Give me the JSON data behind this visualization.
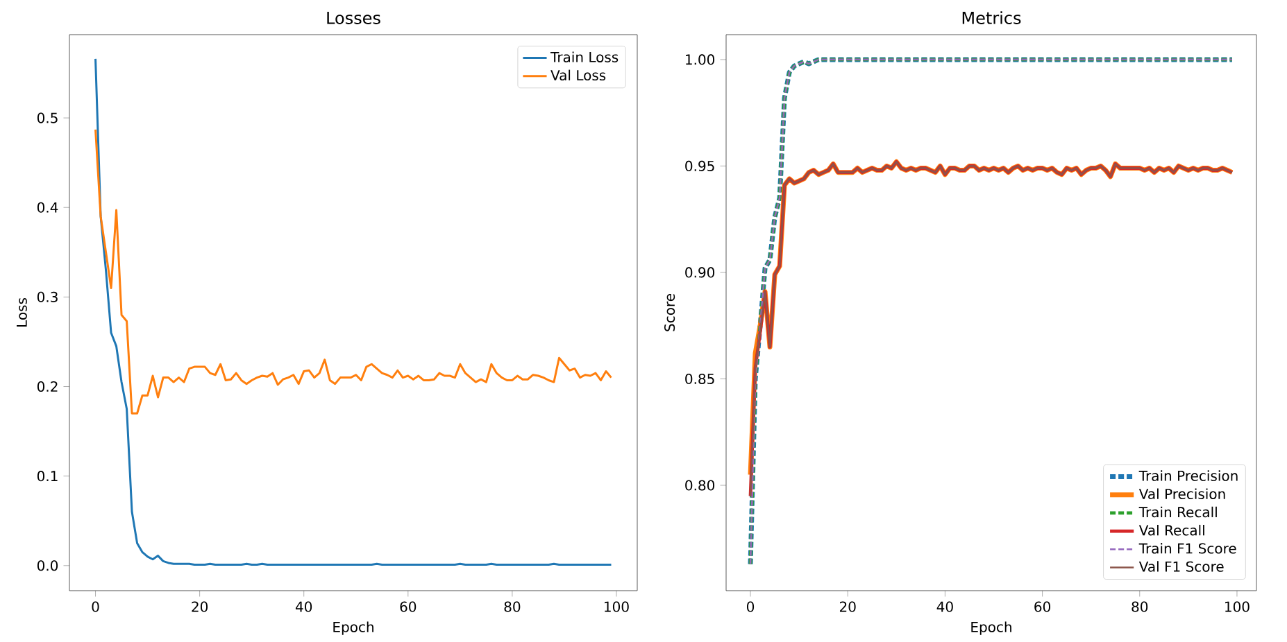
{
  "chart_data": [
    {
      "type": "line",
      "title": "Losses",
      "xlabel": "Epoch",
      "ylabel": "Loss",
      "legend": "top right",
      "xlim": [
        -5,
        104
      ],
      "ylim": [
        -0.028,
        0.593
      ],
      "xticks": [
        0,
        20,
        40,
        60,
        80,
        100
      ],
      "yticks": [
        {
          "value": 0,
          "label": "0.0"
        },
        {
          "value": 0.1,
          "label": "0.1"
        },
        {
          "value": 0.2,
          "label": "0.2"
        },
        {
          "value": 0.3,
          "label": "0.3"
        },
        {
          "value": 0.4,
          "label": "0.4"
        },
        {
          "value": 0.5,
          "label": "0.5"
        }
      ],
      "x": [
        0,
        1,
        2,
        3,
        4,
        5,
        6,
        7,
        8,
        9,
        10,
        11,
        12,
        13,
        14,
        15,
        16,
        17,
        18,
        19,
        20,
        21,
        22,
        23,
        24,
        25,
        26,
        27,
        28,
        29,
        30,
        31,
        32,
        33,
        34,
        35,
        36,
        37,
        38,
        39,
        40,
        41,
        42,
        43,
        44,
        45,
        46,
        47,
        48,
        49,
        50,
        51,
        52,
        53,
        54,
        55,
        56,
        57,
        58,
        59,
        60,
        61,
        62,
        63,
        64,
        65,
        66,
        67,
        68,
        69,
        70,
        71,
        72,
        73,
        74,
        75,
        76,
        77,
        78,
        79,
        80,
        81,
        82,
        83,
        84,
        85,
        86,
        87,
        88,
        89,
        90,
        91,
        92,
        93,
        94,
        95,
        96,
        97,
        98,
        99
      ],
      "series": [
        {
          "name": "Train Loss",
          "color": "#1f77b4",
          "values": [
            0.566,
            0.39,
            0.33,
            0.26,
            0.245,
            0.205,
            0.175,
            0.06,
            0.025,
            0.015,
            0.01,
            0.007,
            0.011,
            0.005,
            0.003,
            0.002,
            0.002,
            0.002,
            0.002,
            0.001,
            0.001,
            0.001,
            0.002,
            0.001,
            0.001,
            0.001,
            0.001,
            0.001,
            0.001,
            0.002,
            0.001,
            0.001,
            0.002,
            0.001,
            0.001,
            0.001,
            0.001,
            0.001,
            0.001,
            0.001,
            0.001,
            0.001,
            0.001,
            0.001,
            0.001,
            0.001,
            0.001,
            0.001,
            0.001,
            0.001,
            0.001,
            0.001,
            0.001,
            0.001,
            0.002,
            0.001,
            0.001,
            0.001,
            0.001,
            0.001,
            0.001,
            0.001,
            0.001,
            0.001,
            0.001,
            0.001,
            0.001,
            0.001,
            0.001,
            0.001,
            0.002,
            0.001,
            0.001,
            0.001,
            0.001,
            0.001,
            0.002,
            0.001,
            0.001,
            0.001,
            0.001,
            0.001,
            0.001,
            0.001,
            0.001,
            0.001,
            0.001,
            0.001,
            0.002,
            0.001,
            0.001,
            0.001,
            0.001,
            0.001,
            0.001,
            0.001,
            0.001,
            0.001,
            0.001,
            0.001
          ]
        },
        {
          "name": "Val Loss",
          "color": "#ff7f0e",
          "values": [
            0.487,
            0.39,
            0.35,
            0.31,
            0.397,
            0.28,
            0.273,
            0.17,
            0.17,
            0.19,
            0.19,
            0.212,
            0.188,
            0.21,
            0.21,
            0.205,
            0.21,
            0.205,
            0.22,
            0.222,
            0.222,
            0.222,
            0.215,
            0.213,
            0.225,
            0.207,
            0.208,
            0.215,
            0.207,
            0.203,
            0.207,
            0.21,
            0.212,
            0.211,
            0.215,
            0.202,
            0.208,
            0.21,
            0.213,
            0.203,
            0.217,
            0.218,
            0.21,
            0.215,
            0.23,
            0.207,
            0.203,
            0.21,
            0.21,
            0.21,
            0.213,
            0.207,
            0.222,
            0.225,
            0.22,
            0.215,
            0.213,
            0.21,
            0.218,
            0.21,
            0.212,
            0.208,
            0.212,
            0.207,
            0.207,
            0.208,
            0.215,
            0.212,
            0.212,
            0.21,
            0.225,
            0.215,
            0.21,
            0.205,
            0.208,
            0.205,
            0.225,
            0.215,
            0.21,
            0.207,
            0.207,
            0.212,
            0.208,
            0.208,
            0.213,
            0.212,
            0.21,
            0.207,
            0.205,
            0.232,
            0.225,
            0.218,
            0.22,
            0.21,
            0.213,
            0.212,
            0.215,
            0.207,
            0.217,
            0.21
          ]
        }
      ]
    },
    {
      "type": "line",
      "title": "Metrics",
      "xlabel": "Epoch",
      "ylabel": "Score",
      "legend": "bottom right",
      "xlim": [
        -5,
        104
      ],
      "ylim": [
        0.7505,
        1.0117
      ],
      "xticks": [
        0,
        20,
        40,
        60,
        80,
        100
      ],
      "yticks": [
        {
          "value": 0.8,
          "label": "0.80"
        },
        {
          "value": 0.85,
          "label": "0.85"
        },
        {
          "value": 0.9,
          "label": "0.90"
        },
        {
          "value": 0.95,
          "label": "0.95"
        },
        {
          "value": 1.0,
          "label": "1.00"
        }
      ],
      "x": [
        0,
        1,
        2,
        3,
        4,
        5,
        6,
        7,
        8,
        9,
        10,
        11,
        12,
        13,
        14,
        15,
        16,
        17,
        18,
        19,
        20,
        21,
        22,
        23,
        24,
        25,
        26,
        27,
        28,
        29,
        30,
        31,
        32,
        33,
        34,
        35,
        36,
        37,
        38,
        39,
        40,
        41,
        42,
        43,
        44,
        45,
        46,
        47,
        48,
        49,
        50,
        51,
        52,
        53,
        54,
        55,
        56,
        57,
        58,
        59,
        60,
        61,
        62,
        63,
        64,
        65,
        66,
        67,
        68,
        69,
        70,
        71,
        72,
        73,
        74,
        75,
        76,
        77,
        78,
        79,
        80,
        81,
        82,
        83,
        84,
        85,
        86,
        87,
        88,
        89,
        90,
        91,
        92,
        93,
        94,
        95,
        96,
        97,
        98,
        99
      ],
      "series": [
        {
          "name": "Train Precision",
          "color": "#1f77b4",
          "line_style": "dashed",
          "values": [
            0.763,
            0.85,
            0.875,
            0.902,
            0.906,
            0.926,
            0.935,
            0.982,
            0.994,
            0.997,
            0.998,
            0.999,
            0.998,
            0.999,
            1.0,
            1.0,
            1.0,
            1.0,
            1.0,
            1.0,
            1.0,
            1.0,
            1.0,
            1.0,
            1.0,
            1.0,
            1.0,
            1.0,
            1.0,
            1.0,
            1.0,
            1.0,
            1.0,
            1.0,
            1.0,
            1.0,
            1.0,
            1.0,
            1.0,
            1.0,
            1.0,
            1.0,
            1.0,
            1.0,
            1.0,
            1.0,
            1.0,
            1.0,
            1.0,
            1.0,
            1.0,
            1.0,
            1.0,
            1.0,
            1.0,
            1.0,
            1.0,
            1.0,
            1.0,
            1.0,
            1.0,
            1.0,
            1.0,
            1.0,
            1.0,
            1.0,
            1.0,
            1.0,
            1.0,
            1.0,
            1.0,
            1.0,
            1.0,
            1.0,
            1.0,
            1.0,
            1.0,
            1.0,
            1.0,
            1.0,
            1.0,
            1.0,
            1.0,
            1.0,
            1.0,
            1.0,
            1.0,
            1.0,
            1.0,
            1.0,
            1.0,
            1.0,
            1.0,
            1.0,
            1.0,
            1.0,
            1.0,
            1.0,
            1.0,
            1.0
          ]
        },
        {
          "name": "Val Precision",
          "color": "#ff7f0e",
          "line_style": "solid",
          "values": [
            0.805,
            0.862,
            0.875,
            0.891,
            0.865,
            0.899,
            0.903,
            0.941,
            0.944,
            0.942,
            0.943,
            0.944,
            0.947,
            0.948,
            0.946,
            0.947,
            0.948,
            0.951,
            0.947,
            0.947,
            0.947,
            0.947,
            0.949,
            0.947,
            0.948,
            0.949,
            0.948,
            0.948,
            0.95,
            0.949,
            0.952,
            0.949,
            0.948,
            0.949,
            0.948,
            0.949,
            0.949,
            0.948,
            0.947,
            0.95,
            0.946,
            0.949,
            0.949,
            0.948,
            0.948,
            0.95,
            0.95,
            0.948,
            0.949,
            0.948,
            0.949,
            0.948,
            0.949,
            0.947,
            0.949,
            0.95,
            0.948,
            0.949,
            0.948,
            0.949,
            0.949,
            0.948,
            0.949,
            0.947,
            0.946,
            0.949,
            0.948,
            0.949,
            0.946,
            0.948,
            0.949,
            0.949,
            0.95,
            0.948,
            0.945,
            0.951,
            0.949,
            0.949,
            0.949,
            0.949,
            0.949,
            0.948,
            0.949,
            0.947,
            0.949,
            0.948,
            0.949,
            0.947,
            0.95,
            0.949,
            0.948,
            0.949,
            0.948,
            0.949,
            0.949,
            0.948,
            0.948,
            0.949,
            0.948,
            0.947
          ]
        },
        {
          "name": "Train Recall",
          "color": "#2ca02c",
          "line_style": "dashed",
          "values": [
            0.763,
            0.85,
            0.875,
            0.902,
            0.906,
            0.926,
            0.935,
            0.982,
            0.994,
            0.997,
            0.998,
            0.999,
            0.998,
            0.999,
            1.0,
            1.0,
            1.0,
            1.0,
            1.0,
            1.0,
            1.0,
            1.0,
            1.0,
            1.0,
            1.0,
            1.0,
            1.0,
            1.0,
            1.0,
            1.0,
            1.0,
            1.0,
            1.0,
            1.0,
            1.0,
            1.0,
            1.0,
            1.0,
            1.0,
            1.0,
            1.0,
            1.0,
            1.0,
            1.0,
            1.0,
            1.0,
            1.0,
            1.0,
            1.0,
            1.0,
            1.0,
            1.0,
            1.0,
            1.0,
            1.0,
            1.0,
            1.0,
            1.0,
            1.0,
            1.0,
            1.0,
            1.0,
            1.0,
            1.0,
            1.0,
            1.0,
            1.0,
            1.0,
            1.0,
            1.0,
            1.0,
            1.0,
            1.0,
            1.0,
            1.0,
            1.0,
            1.0,
            1.0,
            1.0,
            1.0,
            1.0,
            1.0,
            1.0,
            1.0,
            1.0,
            1.0,
            1.0,
            1.0,
            1.0,
            1.0,
            1.0,
            1.0,
            1.0,
            1.0,
            1.0,
            1.0,
            1.0,
            1.0,
            1.0,
            1.0
          ]
        },
        {
          "name": "Val Recall",
          "color": "#d62728",
          "line_style": "solid",
          "values": [
            0.795,
            0.855,
            0.872,
            0.891,
            0.865,
            0.899,
            0.903,
            0.941,
            0.944,
            0.942,
            0.943,
            0.944,
            0.947,
            0.948,
            0.946,
            0.947,
            0.948,
            0.951,
            0.947,
            0.947,
            0.947,
            0.947,
            0.949,
            0.947,
            0.948,
            0.949,
            0.948,
            0.948,
            0.95,
            0.949,
            0.952,
            0.949,
            0.948,
            0.949,
            0.948,
            0.949,
            0.949,
            0.948,
            0.947,
            0.95,
            0.946,
            0.949,
            0.949,
            0.948,
            0.948,
            0.95,
            0.95,
            0.948,
            0.949,
            0.948,
            0.949,
            0.948,
            0.949,
            0.947,
            0.949,
            0.95,
            0.948,
            0.949,
            0.948,
            0.949,
            0.949,
            0.948,
            0.949,
            0.947,
            0.946,
            0.949,
            0.948,
            0.949,
            0.946,
            0.948,
            0.949,
            0.949,
            0.95,
            0.948,
            0.945,
            0.951,
            0.949,
            0.949,
            0.949,
            0.949,
            0.949,
            0.948,
            0.949,
            0.947,
            0.949,
            0.948,
            0.949,
            0.947,
            0.95,
            0.949,
            0.948,
            0.949,
            0.948,
            0.949,
            0.949,
            0.948,
            0.948,
            0.949,
            0.948,
            0.947
          ]
        },
        {
          "name": "Train F1 Score",
          "color": "#9467bd",
          "line_style": "dashed",
          "values": [
            0.763,
            0.85,
            0.875,
            0.902,
            0.906,
            0.926,
            0.935,
            0.982,
            0.994,
            0.997,
            0.998,
            0.999,
            0.998,
            0.999,
            1.0,
            1.0,
            1.0,
            1.0,
            1.0,
            1.0,
            1.0,
            1.0,
            1.0,
            1.0,
            1.0,
            1.0,
            1.0,
            1.0,
            1.0,
            1.0,
            1.0,
            1.0,
            1.0,
            1.0,
            1.0,
            1.0,
            1.0,
            1.0,
            1.0,
            1.0,
            1.0,
            1.0,
            1.0,
            1.0,
            1.0,
            1.0,
            1.0,
            1.0,
            1.0,
            1.0,
            1.0,
            1.0,
            1.0,
            1.0,
            1.0,
            1.0,
            1.0,
            1.0,
            1.0,
            1.0,
            1.0,
            1.0,
            1.0,
            1.0,
            1.0,
            1.0,
            1.0,
            1.0,
            1.0,
            1.0,
            1.0,
            1.0,
            1.0,
            1.0,
            1.0,
            1.0,
            1.0,
            1.0,
            1.0,
            1.0,
            1.0,
            1.0,
            1.0,
            1.0,
            1.0,
            1.0,
            1.0,
            1.0,
            1.0,
            1.0,
            1.0,
            1.0,
            1.0,
            1.0,
            1.0,
            1.0,
            1.0,
            1.0,
            1.0,
            1.0
          ]
        },
        {
          "name": "Val F1 Score",
          "color": "#8c564b",
          "line_style": "solid",
          "values": [
            0.795,
            0.855,
            0.872,
            0.891,
            0.865,
            0.899,
            0.903,
            0.941,
            0.944,
            0.942,
            0.943,
            0.944,
            0.947,
            0.948,
            0.946,
            0.947,
            0.948,
            0.951,
            0.947,
            0.947,
            0.947,
            0.947,
            0.949,
            0.947,
            0.948,
            0.949,
            0.948,
            0.948,
            0.95,
            0.949,
            0.952,
            0.949,
            0.948,
            0.949,
            0.948,
            0.949,
            0.949,
            0.948,
            0.947,
            0.95,
            0.946,
            0.949,
            0.949,
            0.948,
            0.948,
            0.95,
            0.95,
            0.948,
            0.949,
            0.948,
            0.949,
            0.948,
            0.949,
            0.947,
            0.949,
            0.95,
            0.948,
            0.949,
            0.948,
            0.949,
            0.949,
            0.948,
            0.949,
            0.947,
            0.946,
            0.949,
            0.948,
            0.949,
            0.946,
            0.948,
            0.949,
            0.949,
            0.95,
            0.948,
            0.945,
            0.951,
            0.949,
            0.949,
            0.949,
            0.949,
            0.949,
            0.948,
            0.949,
            0.947,
            0.949,
            0.948,
            0.949,
            0.947,
            0.95,
            0.949,
            0.948,
            0.949,
            0.948,
            0.949,
            0.949,
            0.948,
            0.948,
            0.949,
            0.948,
            0.947
          ]
        }
      ]
    }
  ]
}
